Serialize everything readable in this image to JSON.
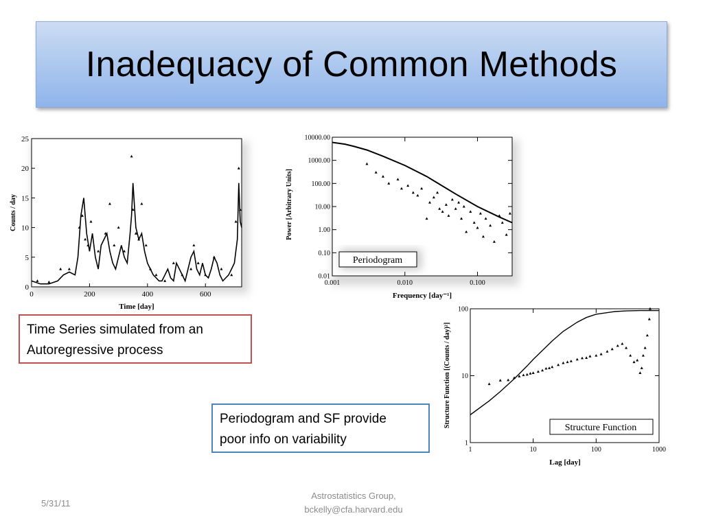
{
  "slide": {
    "title": "Inadequacy of Common Methods",
    "note_red_line1": "Time Series simulated from an",
    "note_red_line2": "Autoregressive process",
    "note_blue_line1": "Periodogram and SF provide",
    "note_blue_line2": "poor info on variability",
    "footer_date": "5/31/11",
    "footer_line1": "Astrostatistics Group,",
    "footer_line2": "bckelly@cfa.harvard.edu"
  },
  "chart_data": [
    {
      "type": "line",
      "xlabel": "Time [day]",
      "ylabel": "Counts / day",
      "xlim": [
        0,
        725
      ],
      "ylim": [
        0,
        25
      ],
      "xticks": [
        0,
        200,
        400,
        600
      ],
      "yticks": [
        0,
        5,
        10,
        15,
        20,
        25
      ],
      "series": [
        {
          "style": "line",
          "x": [
            0,
            30,
            60,
            90,
            110,
            130,
            150,
            160,
            170,
            180,
            190,
            200,
            210,
            220,
            230,
            240,
            250,
            260,
            270,
            280,
            290,
            300,
            310,
            320,
            330,
            340,
            345,
            350,
            360,
            370,
            380,
            390,
            400,
            410,
            420,
            430,
            440,
            450,
            460,
            470,
            480,
            490,
            500,
            510,
            520,
            530,
            540,
            550,
            560,
            570,
            580,
            590,
            600,
            610,
            620,
            630,
            640,
            650,
            660,
            670,
            680,
            690,
            700,
            710,
            715,
            720,
            725
          ],
          "y": [
            1,
            0.5,
            0.5,
            1,
            2,
            2.5,
            2,
            5,
            12,
            15,
            9,
            6,
            9,
            5,
            3,
            7,
            8,
            9,
            6,
            4,
            3,
            5,
            7,
            5,
            4,
            9,
            12,
            17.5,
            10,
            8,
            9,
            6,
            4,
            3,
            2,
            1.5,
            1,
            1,
            2,
            3,
            1.5,
            1,
            4,
            3,
            2,
            1,
            3,
            5,
            6,
            3,
            2,
            4,
            2,
            1.5,
            3,
            5,
            4,
            2,
            1,
            1.5,
            2,
            3,
            4,
            8,
            17.5,
            11,
            10
          ]
        },
        {
          "style": "points",
          "x": [
            20,
            60,
            100,
            130,
            165,
            175,
            185,
            195,
            205,
            230,
            255,
            270,
            285,
            300,
            320,
            345,
            350,
            360,
            370,
            380,
            395,
            410,
            430,
            460,
            490,
            520,
            550,
            560,
            575,
            600,
            630,
            655,
            690,
            705,
            715,
            720
          ],
          "y": [
            1,
            0.8,
            3,
            3,
            10,
            12,
            8,
            7,
            11,
            6,
            9,
            14,
            7,
            10,
            6,
            22,
            13,
            9,
            8,
            14,
            7,
            3,
            2,
            1,
            4,
            2,
            3,
            7,
            4,
            2,
            5,
            3,
            2,
            11,
            20,
            13
          ]
        }
      ]
    },
    {
      "type": "scatter",
      "title": "Periodogram",
      "xlabel": "Frequency [day⁻¹]",
      "ylabel": "Power [Arbitrary Units]",
      "xscale": "log",
      "yscale": "log",
      "xlim": [
        0.001,
        0.3
      ],
      "ylim": [
        0.01,
        10000
      ],
      "xtick_labels": [
        "0.001",
        "0.010",
        "0.100"
      ],
      "ytick_labels": [
        "0.01",
        "0.10",
        "1.00",
        "10.00",
        "100.00",
        "1000.00",
        "10000.00"
      ],
      "series": [
        {
          "style": "line",
          "x": [
            0.001,
            0.0015,
            0.002,
            0.003,
            0.005,
            0.01,
            0.02,
            0.05,
            0.1,
            0.2,
            0.3
          ],
          "y": [
            6000,
            5000,
            4000,
            2800,
            1500,
            600,
            200,
            35,
            10,
            3.5,
            2
          ]
        },
        {
          "style": "points",
          "x": [
            0.003,
            0.004,
            0.005,
            0.006,
            0.008,
            0.009,
            0.011,
            0.013,
            0.015,
            0.017,
            0.02,
            0.022,
            0.025,
            0.028,
            0.03,
            0.033,
            0.037,
            0.04,
            0.045,
            0.05,
            0.055,
            0.06,
            0.065,
            0.07,
            0.08,
            0.09,
            0.1,
            0.11,
            0.12,
            0.13,
            0.15,
            0.17,
            0.2,
            0.22,
            0.25,
            0.28
          ],
          "y": [
            700,
            300,
            200,
            100,
            150,
            60,
            80,
            40,
            30,
            60,
            3,
            15,
            25,
            40,
            8,
            6,
            12,
            4,
            20,
            8,
            15,
            3,
            10,
            0.8,
            6,
            2,
            1.2,
            5,
            0.5,
            3,
            1.5,
            0.3,
            4,
            2,
            0.6,
            5
          ]
        }
      ]
    },
    {
      "type": "scatter",
      "title": "Structure Function",
      "xlabel": "Lag [day]",
      "ylabel": "Structure Function [(Counts / day)²]",
      "xscale": "log",
      "yscale": "log",
      "xlim": [
        1,
        1000
      ],
      "ylim": [
        1,
        100
      ],
      "xtick_labels": [
        "1",
        "10",
        "100",
        "1000"
      ],
      "ytick_labels": [
        "1",
        "10",
        "100"
      ],
      "series": [
        {
          "style": "line",
          "x": [
            1,
            2,
            3,
            5,
            8,
            10,
            20,
            30,
            50,
            70,
            100,
            200,
            300,
            500,
            1000
          ],
          "y": [
            2.6,
            4.2,
            5.8,
            9,
            14,
            17.5,
            33,
            46,
            63,
            74,
            83,
            91,
            93,
            94,
            94
          ]
        },
        {
          "style": "points",
          "x": [
            2,
            3,
            4,
            5,
            6,
            7,
            8,
            9,
            10,
            12,
            14,
            16,
            18,
            20,
            25,
            30,
            35,
            40,
            50,
            60,
            70,
            80,
            100,
            120,
            150,
            180,
            220,
            260,
            300,
            350,
            400,
            450,
            500,
            530,
            560,
            600,
            650,
            700,
            720
          ],
          "y": [
            7.5,
            8.5,
            8.6,
            9.3,
            9.8,
            10.2,
            10.4,
            10.8,
            11,
            11.5,
            12,
            12.8,
            13,
            13.5,
            14.5,
            15.5,
            16,
            16.5,
            17.5,
            18.3,
            18.5,
            19.5,
            20,
            21,
            23,
            25,
            28,
            30,
            26,
            20,
            16,
            17,
            11,
            13,
            20,
            26,
            40,
            70,
            100
          ]
        }
      ]
    }
  ]
}
